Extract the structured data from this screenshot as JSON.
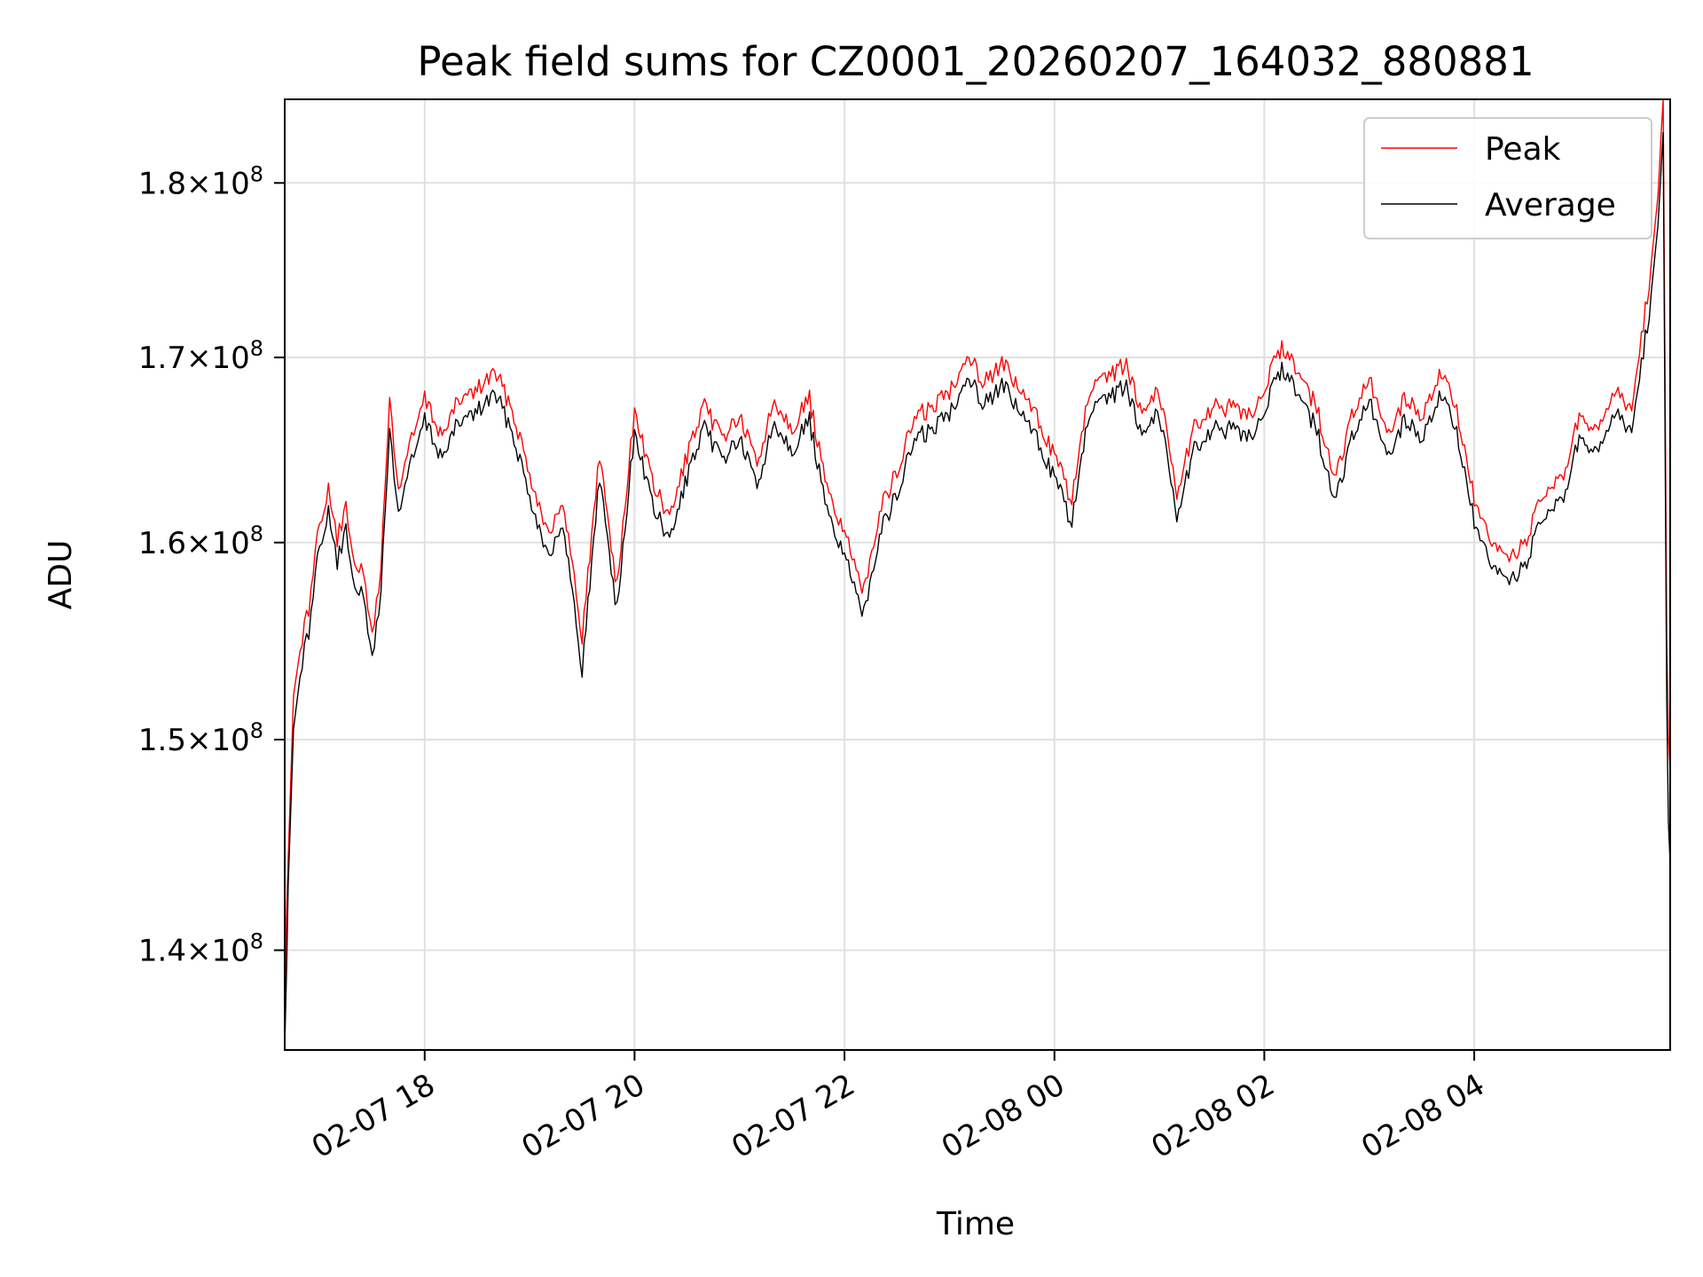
{
  "chart_data": {
    "type": "line",
    "title": "Peak field sums for CZ0001_20260207_164032_880881",
    "xlabel": "Time",
    "ylabel": "ADU",
    "yscale": "log",
    "ylim": [
      135500000,
      185000000
    ],
    "xlim": [
      "2026-02-07 16:40",
      "2026-02-08 05:52"
    ],
    "grid": true,
    "legend_position": "top-right",
    "x_ticks": [
      {
        "time": "2026-02-07 18:00",
        "label": "02-07 18"
      },
      {
        "time": "2026-02-07 20:00",
        "label": "02-07 20"
      },
      {
        "time": "2026-02-07 22:00",
        "label": "02-07 22"
      },
      {
        "time": "2026-02-08 00:00",
        "label": "02-08 00"
      },
      {
        "time": "2026-02-08 02:00",
        "label": "02-08 02"
      },
      {
        "time": "2026-02-08 04:00",
        "label": "02-08 04"
      }
    ],
    "y_ticks": [
      {
        "value": 140000000,
        "mantissa": "1.4",
        "exponent": "8"
      },
      {
        "value": 150000000,
        "mantissa": "1.5",
        "exponent": "8"
      },
      {
        "value": 160000000,
        "mantissa": "1.6",
        "exponent": "8"
      },
      {
        "value": 170000000,
        "mantissa": "1.7",
        "exponent": "8"
      },
      {
        "value": 180000000,
        "mantissa": "1.8",
        "exponent": "8"
      }
    ],
    "series": [
      {
        "name": "Peak",
        "color": "#ff0000",
        "x": [
          "2026-02-07 16:40",
          "2026-02-07 16:41",
          "2026-02-07 16:42",
          "2026-02-07 16:45",
          "2026-02-07 16:50",
          "2026-02-07 16:55",
          "2026-02-07 17:00",
          "2026-02-07 17:05",
          "2026-02-07 17:10",
          "2026-02-07 17:15",
          "2026-02-07 17:20",
          "2026-02-07 17:25",
          "2026-02-07 17:30",
          "2026-02-07 17:35",
          "2026-02-07 17:40",
          "2026-02-07 17:45",
          "2026-02-07 17:50",
          "2026-02-07 17:55",
          "2026-02-07 18:00",
          "2026-02-07 18:10",
          "2026-02-07 18:20",
          "2026-02-07 18:30",
          "2026-02-07 18:40",
          "2026-02-07 18:50",
          "2026-02-07 19:00",
          "2026-02-07 19:10",
          "2026-02-07 19:20",
          "2026-02-07 19:30",
          "2026-02-07 19:40",
          "2026-02-07 19:50",
          "2026-02-07 20:00",
          "2026-02-07 20:10",
          "2026-02-07 20:20",
          "2026-02-07 20:30",
          "2026-02-07 20:40",
          "2026-02-07 20:50",
          "2026-02-07 21:00",
          "2026-02-07 21:10",
          "2026-02-07 21:20",
          "2026-02-07 21:30",
          "2026-02-07 21:40",
          "2026-02-07 21:50",
          "2026-02-07 22:00",
          "2026-02-07 22:10",
          "2026-02-07 22:20",
          "2026-02-07 22:30",
          "2026-02-07 22:40",
          "2026-02-07 22:50",
          "2026-02-07 23:00",
          "2026-02-07 23:10",
          "2026-02-07 23:20",
          "2026-02-07 23:30",
          "2026-02-07 23:40",
          "2026-02-07 23:50",
          "2026-02-08 00:00",
          "2026-02-08 00:10",
          "2026-02-08 00:20",
          "2026-02-08 00:30",
          "2026-02-08 00:40",
          "2026-02-08 00:50",
          "2026-02-08 01:00",
          "2026-02-08 01:10",
          "2026-02-08 01:20",
          "2026-02-08 01:30",
          "2026-02-08 01:40",
          "2026-02-08 01:50",
          "2026-02-08 02:00",
          "2026-02-08 02:10",
          "2026-02-08 02:20",
          "2026-02-08 02:30",
          "2026-02-08 02:40",
          "2026-02-08 02:50",
          "2026-02-08 03:00",
          "2026-02-08 03:10",
          "2026-02-08 03:20",
          "2026-02-08 03:30",
          "2026-02-08 03:40",
          "2026-02-08 03:50",
          "2026-02-08 04:00",
          "2026-02-08 04:10",
          "2026-02-08 04:20",
          "2026-02-08 04:30",
          "2026-02-08 04:40",
          "2026-02-08 04:50",
          "2026-02-08 05:00",
          "2026-02-08 05:10",
          "2026-02-08 05:20",
          "2026-02-08 05:30",
          "2026-02-08 05:40",
          "2026-02-08 05:45",
          "2026-02-08 05:48",
          "2026-02-08 05:50",
          "2026-02-08 05:51",
          "2026-02-08 05:52"
        ],
        "values": [
          136500000,
          141500000,
          144000000,
          152000000,
          155000000,
          157000000,
          161000000,
          162500000,
          160000000,
          161500000,
          159000000,
          158000000,
          155000000,
          158500000,
          167500000,
          162500000,
          164500000,
          166000000,
          167500000,
          165500000,
          167500000,
          168000000,
          169000000,
          167000000,
          163500000,
          160500000,
          161500000,
          155000000,
          164500000,
          157500000,
          167000000,
          163000000,
          161000000,
          164500000,
          167000000,
          165500000,
          166500000,
          164000000,
          167500000,
          166000000,
          167500000,
          162500000,
          160500000,
          157000000,
          161500000,
          163500000,
          166500000,
          167000000,
          168000000,
          170000000,
          168500000,
          169500000,
          168000000,
          166500000,
          164500000,
          162000000,
          168000000,
          168500000,
          169500000,
          167000000,
          168000000,
          162500000,
          166000000,
          167000000,
          167000000,
          166500000,
          168000000,
          170500000,
          169000000,
          167000000,
          163000000,
          166500000,
          168500000,
          165500000,
          167500000,
          166500000,
          169000000,
          167000000,
          162000000,
          159500000,
          159000000,
          160000000,
          162500000,
          163000000,
          166500000,
          165500000,
          168000000,
          167000000,
          174000000,
          179000000,
          185000000,
          155000000,
          150000000,
          148500000
        ]
      },
      {
        "name": "Average",
        "color": "#000000",
        "x": [
          "2026-02-07 16:40",
          "2026-02-07 16:41",
          "2026-02-07 16:42",
          "2026-02-07 16:45",
          "2026-02-07 16:50",
          "2026-02-07 16:55",
          "2026-02-07 17:00",
          "2026-02-07 17:05",
          "2026-02-07 17:10",
          "2026-02-07 17:15",
          "2026-02-07 17:20",
          "2026-02-07 17:25",
          "2026-02-07 17:30",
          "2026-02-07 17:35",
          "2026-02-07 17:40",
          "2026-02-07 17:45",
          "2026-02-07 17:50",
          "2026-02-07 17:55",
          "2026-02-07 18:00",
          "2026-02-07 18:10",
          "2026-02-07 18:20",
          "2026-02-07 18:30",
          "2026-02-07 18:40",
          "2026-02-07 18:50",
          "2026-02-07 19:00",
          "2026-02-07 19:10",
          "2026-02-07 19:20",
          "2026-02-07 19:30",
          "2026-02-07 19:40",
          "2026-02-07 19:50",
          "2026-02-07 20:00",
          "2026-02-07 20:10",
          "2026-02-07 20:20",
          "2026-02-07 20:30",
          "2026-02-07 20:40",
          "2026-02-07 20:50",
          "2026-02-07 21:00",
          "2026-02-07 21:10",
          "2026-02-07 21:20",
          "2026-02-07 21:30",
          "2026-02-07 21:40",
          "2026-02-07 21:50",
          "2026-02-07 22:00",
          "2026-02-07 22:10",
          "2026-02-07 22:20",
          "2026-02-07 22:30",
          "2026-02-07 22:40",
          "2026-02-07 22:50",
          "2026-02-07 23:00",
          "2026-02-07 23:10",
          "2026-02-07 23:20",
          "2026-02-07 23:30",
          "2026-02-07 23:40",
          "2026-02-07 23:50",
          "2026-02-08 00:00",
          "2026-02-08 00:10",
          "2026-02-08 00:20",
          "2026-02-08 00:30",
          "2026-02-08 00:40",
          "2026-02-08 00:50",
          "2026-02-08 01:00",
          "2026-02-08 01:10",
          "2026-02-08 01:20",
          "2026-02-08 01:30",
          "2026-02-08 01:40",
          "2026-02-08 01:50",
          "2026-02-08 02:00",
          "2026-02-08 02:10",
          "2026-02-08 02:20",
          "2026-02-08 02:30",
          "2026-02-08 02:40",
          "2026-02-08 02:50",
          "2026-02-08 03:00",
          "2026-02-08 03:10",
          "2026-02-08 03:20",
          "2026-02-08 03:30",
          "2026-02-08 03:40",
          "2026-02-08 03:50",
          "2026-02-08 04:00",
          "2026-02-08 04:10",
          "2026-02-08 04:20",
          "2026-02-08 04:30",
          "2026-02-08 04:40",
          "2026-02-08 04:50",
          "2026-02-08 05:00",
          "2026-02-08 05:10",
          "2026-02-08 05:20",
          "2026-02-08 05:30",
          "2026-02-08 05:40",
          "2026-02-08 05:45",
          "2026-02-08 05:48",
          "2026-02-08 05:50",
          "2026-02-08 05:51",
          "2026-02-08 05:52"
        ],
        "values": [
          135600000,
          139000000,
          143000000,
          150500000,
          154000000,
          156000000,
          160000000,
          161500000,
          159000000,
          160500000,
          158000000,
          157000000,
          154000000,
          157500000,
          166000000,
          161500000,
          163500000,
          165000000,
          166500000,
          164500000,
          166500000,
          167000000,
          168000000,
          166000000,
          162500000,
          159500000,
          160500000,
          153500000,
          163500000,
          156500000,
          166000000,
          162000000,
          160000000,
          163500000,
          166000000,
          164500000,
          165500000,
          163000000,
          166500000,
          165000000,
          166500000,
          161500000,
          159500000,
          156000000,
          160500000,
          162500000,
          165500000,
          166000000,
          167000000,
          169000000,
          167500000,
          168500000,
          167000000,
          165500000,
          163500000,
          161000000,
          167000000,
          167500000,
          168500000,
          166000000,
          167000000,
          161500000,
          165000000,
          166000000,
          166000000,
          165500000,
          167000000,
          169500000,
          168000000,
          166000000,
          162000000,
          165500000,
          167500000,
          164500000,
          166500000,
          165500000,
          168000000,
          166000000,
          161000000,
          158500000,
          158000000,
          159000000,
          161500000,
          162000000,
          165500000,
          164500000,
          167000000,
          166000000,
          172500000,
          177500000,
          183000000,
          152000000,
          146000000,
          144000000
        ]
      }
    ]
  }
}
